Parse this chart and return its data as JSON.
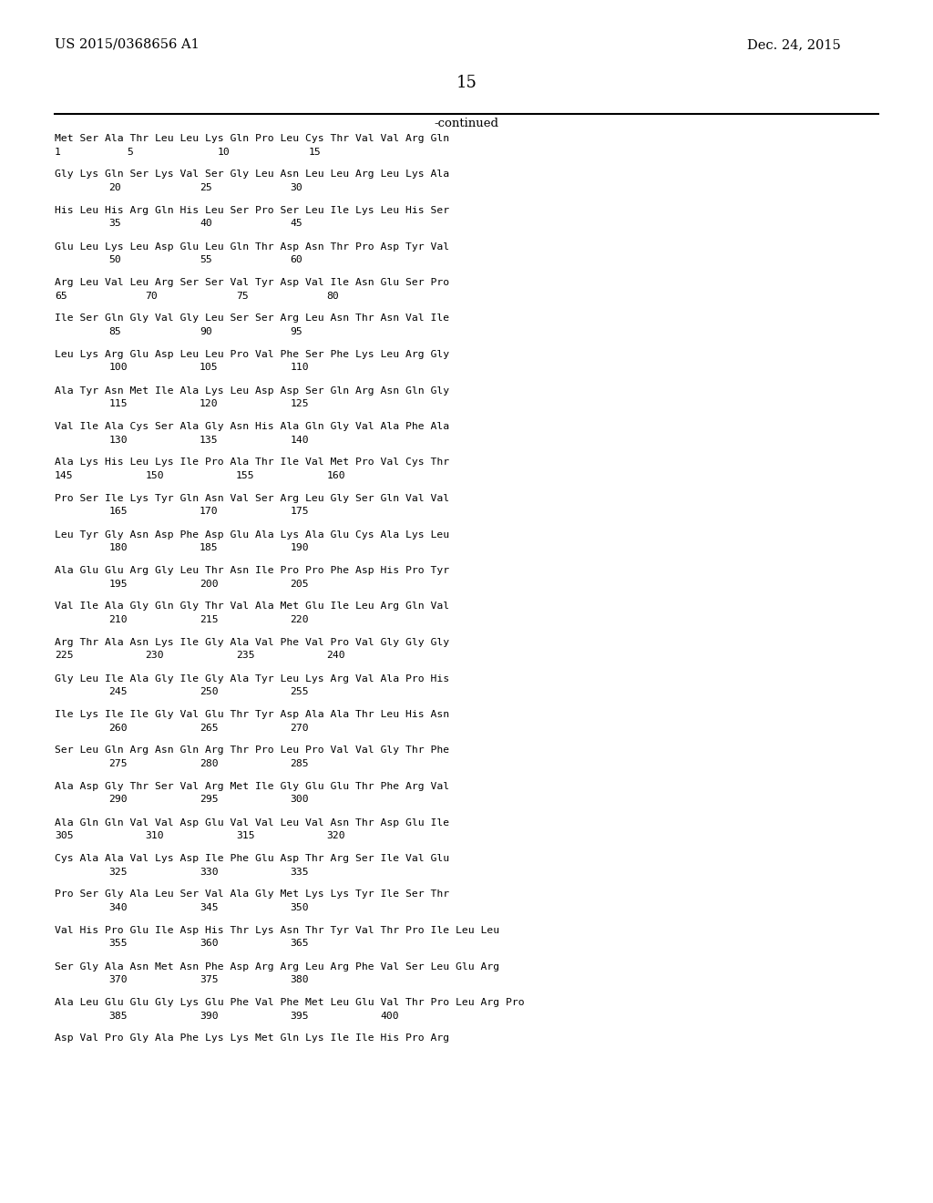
{
  "patent_number": "US 2015/0368656 A1",
  "date": "Dec. 24, 2015",
  "page_number": "15",
  "continued_label": "-continued",
  "background_color": "#ffffff",
  "text_color": "#000000",
  "sequences": [
    {
      "aa": "Met Ser Ala Thr Leu Leu Lys Gln Pro Leu Cys Thr Val Val Arg Gln",
      "nums": [
        [
          "1",
          0
        ],
        [
          "5",
          4
        ],
        [
          "10",
          9
        ],
        [
          "15",
          14
        ]
      ]
    },
    {
      "aa": "Gly Lys Gln Ser Lys Val Ser Gly Leu Asn Leu Leu Arg Leu Lys Ala",
      "nums": [
        [
          "20",
          3
        ],
        [
          "25",
          8
        ],
        [
          "30",
          13
        ]
      ]
    },
    {
      "aa": "His Leu His Arg Gln His Leu Ser Pro Ser Leu Ile Lys Leu His Ser",
      "nums": [
        [
          "35",
          3
        ],
        [
          "40",
          8
        ],
        [
          "45",
          13
        ]
      ]
    },
    {
      "aa": "Glu Leu Lys Leu Asp Glu Leu Gln Thr Asp Asn Thr Pro Asp Tyr Val",
      "nums": [
        [
          "50",
          3
        ],
        [
          "55",
          8
        ],
        [
          "60",
          13
        ]
      ]
    },
    {
      "aa": "Arg Leu Val Leu Arg Ser Ser Val Tyr Asp Val Ile Asn Glu Ser Pro",
      "nums": [
        [
          "65",
          0
        ],
        [
          "70",
          5
        ],
        [
          "75",
          10
        ],
        [
          "80",
          15
        ]
      ]
    },
    {
      "aa": "Ile Ser Gln Gly Val Gly Leu Ser Ser Arg Leu Asn Thr Asn Val Ile",
      "nums": [
        [
          "85",
          3
        ],
        [
          "90",
          8
        ],
        [
          "95",
          13
        ]
      ]
    },
    {
      "aa": "Leu Lys Arg Glu Asp Leu Leu Pro Val Phe Ser Phe Lys Leu Arg Gly",
      "nums": [
        [
          "100",
          3
        ],
        [
          "105",
          8
        ],
        [
          "110",
          13
        ]
      ]
    },
    {
      "aa": "Ala Tyr Asn Met Ile Ala Lys Leu Asp Asp Ser Gln Arg Asn Gln Gly",
      "nums": [
        [
          "115",
          3
        ],
        [
          "120",
          8
        ],
        [
          "125",
          13
        ]
      ]
    },
    {
      "aa": "Val Ile Ala Cys Ser Ala Gly Asn His Ala Gln Gly Val Ala Phe Ala",
      "nums": [
        [
          "130",
          3
        ],
        [
          "135",
          8
        ],
        [
          "140",
          13
        ]
      ]
    },
    {
      "aa": "Ala Lys His Leu Lys Ile Pro Ala Thr Ile Val Met Pro Val Cys Thr",
      "nums": [
        [
          "145",
          0
        ],
        [
          "150",
          5
        ],
        [
          "155",
          10
        ],
        [
          "160",
          15
        ]
      ]
    },
    {
      "aa": "Pro Ser Ile Lys Tyr Gln Asn Val Ser Arg Leu Gly Ser Gln Val Val",
      "nums": [
        [
          "165",
          3
        ],
        [
          "170",
          8
        ],
        [
          "175",
          13
        ]
      ]
    },
    {
      "aa": "Leu Tyr Gly Asn Asp Phe Asp Glu Ala Lys Ala Glu Cys Ala Lys Leu",
      "nums": [
        [
          "180",
          3
        ],
        [
          "185",
          8
        ],
        [
          "190",
          13
        ]
      ]
    },
    {
      "aa": "Ala Glu Glu Arg Gly Leu Thr Asn Ile Pro Pro Phe Asp His Pro Tyr",
      "nums": [
        [
          "195",
          3
        ],
        [
          "200",
          8
        ],
        [
          "205",
          13
        ]
      ]
    },
    {
      "aa": "Val Ile Ala Gly Gln Gly Thr Val Ala Met Glu Ile Leu Arg Gln Val",
      "nums": [
        [
          "210",
          3
        ],
        [
          "215",
          8
        ],
        [
          "220",
          13
        ]
      ]
    },
    {
      "aa": "Arg Thr Ala Asn Lys Ile Gly Ala Val Phe Val Pro Val Gly Gly Gly",
      "nums": [
        [
          "225",
          0
        ],
        [
          "230",
          5
        ],
        [
          "235",
          10
        ],
        [
          "240",
          15
        ]
      ]
    },
    {
      "aa": "Gly Leu Ile Ala Gly Ile Gly Ala Tyr Leu Lys Arg Val Ala Pro His",
      "nums": [
        [
          "245",
          3
        ],
        [
          "250",
          8
        ],
        [
          "255",
          13
        ]
      ]
    },
    {
      "aa": "Ile Lys Ile Ile Gly Val Glu Thr Tyr Asp Ala Ala Thr Leu His Asn",
      "nums": [
        [
          "260",
          3
        ],
        [
          "265",
          8
        ],
        [
          "270",
          13
        ]
      ]
    },
    {
      "aa": "Ser Leu Gln Arg Asn Gln Arg Thr Pro Leu Pro Val Val Gly Thr Phe",
      "nums": [
        [
          "275",
          3
        ],
        [
          "280",
          8
        ],
        [
          "285",
          13
        ]
      ]
    },
    {
      "aa": "Ala Asp Gly Thr Ser Val Arg Met Ile Gly Glu Glu Thr Phe Arg Val",
      "nums": [
        [
          "290",
          3
        ],
        [
          "295",
          8
        ],
        [
          "300",
          13
        ]
      ]
    },
    {
      "aa": "Ala Gln Gln Val Val Asp Glu Val Val Leu Val Asn Thr Asp Glu Ile",
      "nums": [
        [
          "305",
          0
        ],
        [
          "310",
          5
        ],
        [
          "315",
          10
        ],
        [
          "320",
          15
        ]
      ]
    },
    {
      "aa": "Cys Ala Ala Val Lys Asp Ile Phe Glu Asp Thr Arg Ser Ile Val Glu",
      "nums": [
        [
          "325",
          3
        ],
        [
          "330",
          8
        ],
        [
          "335",
          13
        ]
      ]
    },
    {
      "aa": "Pro Ser Gly Ala Leu Ser Val Ala Gly Met Lys Lys Tyr Ile Ser Thr",
      "nums": [
        [
          "340",
          3
        ],
        [
          "345",
          8
        ],
        [
          "350",
          13
        ]
      ]
    },
    {
      "aa": "Val His Pro Glu Ile Asp His Thr Lys Asn Thr Tyr Val Thr Pro Ile Leu Leu",
      "nums": [
        [
          "355",
          3
        ],
        [
          "360",
          8
        ],
        [
          "365",
          13
        ]
      ]
    },
    {
      "aa": "Ser Gly Ala Asn Met Asn Phe Asp Arg Arg Leu Arg Phe Val Ser Leu Glu Arg",
      "nums": [
        [
          "370",
          3
        ],
        [
          "375",
          8
        ],
        [
          "380",
          13
        ]
      ]
    },
    {
      "aa": "Ala Leu Glu Glu Gly Lys Glu Phe Val Phe Met Leu Glu Val Thr Pro Leu Arg Pro",
      "nums": [
        [
          "385",
          3
        ],
        [
          "390",
          8
        ],
        [
          "395",
          13
        ],
        [
          "400",
          18
        ]
      ]
    },
    {
      "aa": "Asp Val Pro Gly Ala Phe Lys Lys Met Gln Lys Ile Ile His Pro Arg",
      "nums": []
    }
  ]
}
